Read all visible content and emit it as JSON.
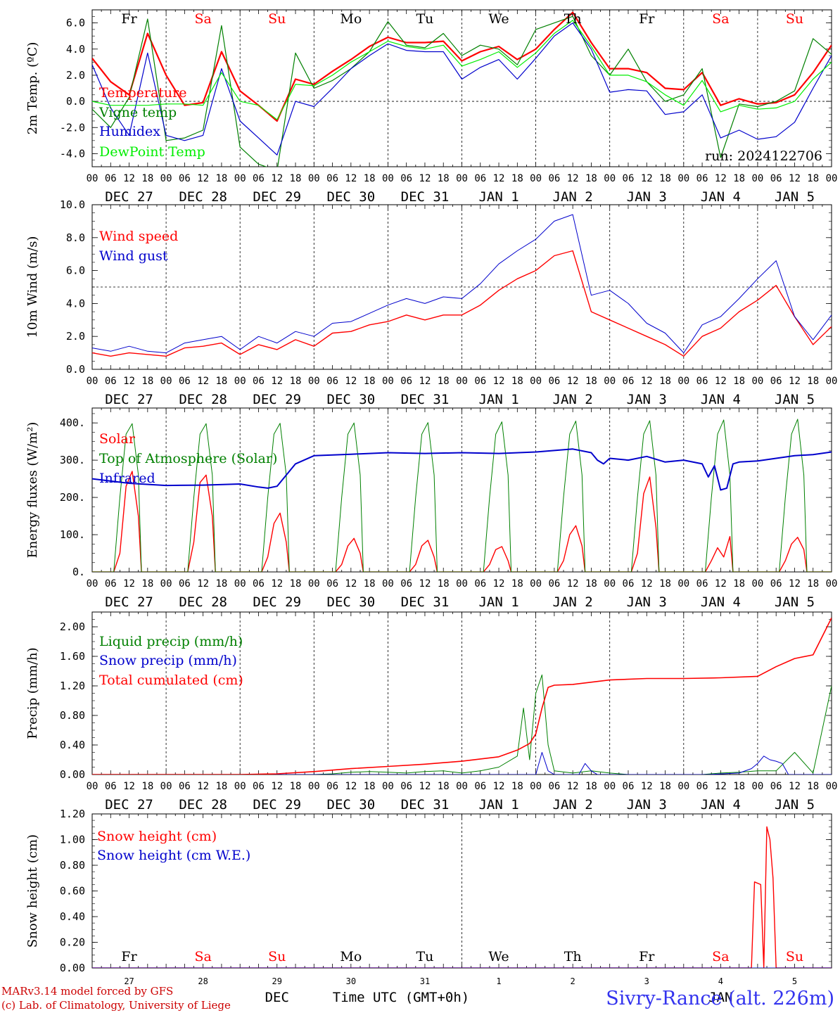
{
  "chart_data": [
    {
      "type": "line",
      "ylabel": "2m Temp. (ºC)",
      "ylim": [
        -5,
        7
      ],
      "yticks": [
        "6.0",
        "4.0",
        "2.0",
        "0.0",
        "-2.0",
        "-4.0"
      ],
      "ytick_values": [
        6,
        4,
        2,
        0,
        -2,
        -4
      ],
      "dashed_y": 0,
      "days": [
        "Fr",
        "Sa",
        "Su",
        "Mo",
        "Tu",
        "We",
        "Th",
        "Fr",
        "Sa",
        "Su"
      ],
      "run_label": "run: 2024122706",
      "x_hours": [
        0,
        6,
        12,
        18,
        24,
        30,
        36,
        42,
        48,
        54,
        60,
        66,
        72,
        78,
        84,
        90,
        96,
        102,
        108,
        114,
        120,
        126,
        132,
        138,
        144,
        150,
        156,
        162,
        168,
        174,
        180,
        186,
        192,
        198,
        204,
        210,
        216,
        222,
        228,
        234,
        240
      ],
      "series": [
        {
          "name": "Temperature",
          "color": "#ff0000",
          "width": 2.2,
          "values": [
            3.3,
            1.5,
            0.5,
            5.2,
            2.0,
            -0.3,
            -0.1,
            3.8,
            0.8,
            -0.3,
            -1.5,
            1.7,
            1.3,
            2.3,
            3.2,
            4.2,
            4.9,
            4.5,
            4.5,
            4.6,
            3.1,
            3.8,
            4.2,
            3.2,
            4.0,
            5.5,
            6.8,
            4.5,
            2.5,
            2.5,
            2.2,
            1.0,
            0.9,
            2.2,
            -0.3,
            0.2,
            -0.2,
            -0.1,
            0.5,
            2.2,
            4.3
          ]
        },
        {
          "name": "Vigne temp",
          "color": "#008000",
          "width": 1.2,
          "values": [
            -0.6,
            -2.0,
            0.3,
            6.3,
            -3.0,
            -2.8,
            -2.2,
            5.8,
            -3.5,
            -4.8,
            -5.3,
            3.7,
            1.0,
            1.6,
            2.5,
            3.8,
            6.1,
            4.3,
            4.1,
            5.2,
            3.5,
            4.3,
            4.0,
            2.8,
            5.5,
            6.0,
            6.5,
            3.5,
            2.0,
            4.0,
            1.5,
            0.0,
            0.5,
            2.5,
            -4.3,
            -0.2,
            -0.4,
            0.0,
            0.8,
            4.8,
            3.6
          ]
        },
        {
          "name": "Humidex",
          "color": "#0000cc",
          "width": 1.2,
          "values": [
            2.8,
            -0.5,
            -2.6,
            3.7,
            -2.6,
            -3.0,
            -2.6,
            2.5,
            -1.5,
            -2.8,
            -4.1,
            0.0,
            -0.4,
            1.0,
            2.5,
            3.5,
            4.4,
            3.9,
            3.8,
            3.8,
            1.7,
            2.6,
            3.2,
            1.7,
            3.3,
            5.0,
            6.0,
            4.0,
            0.7,
            0.9,
            0.8,
            -1.0,
            -0.8,
            0.5,
            -2.8,
            -2.2,
            -2.9,
            -2.7,
            -1.6,
            1.0,
            3.5
          ]
        },
        {
          "name": "DewPoint Temp",
          "color": "#00ee00",
          "width": 1.2,
          "values": [
            0.0,
            -0.3,
            -0.3,
            -0.3,
            -0.2,
            -0.2,
            -0.3,
            2.2,
            0.0,
            -0.3,
            -1.4,
            1.3,
            1.2,
            2.0,
            3.0,
            3.8,
            4.6,
            4.2,
            4.0,
            4.3,
            2.7,
            3.2,
            3.8,
            2.6,
            3.7,
            5.2,
            6.2,
            4.2,
            2.0,
            2.0,
            1.5,
            0.5,
            -0.3,
            1.6,
            -0.8,
            -0.3,
            -0.6,
            -0.5,
            0.0,
            1.7,
            3.0
          ]
        }
      ]
    },
    {
      "type": "line",
      "ylabel": "10m Wind (m/s)",
      "ylim": [
        0,
        10
      ],
      "yticks": [
        "10.0",
        "8.0",
        "6.0",
        "4.0",
        "2.0",
        "0.0"
      ],
      "ytick_values": [
        10,
        8,
        6,
        4,
        2,
        0
      ],
      "dashed_y": 5,
      "x_hours": [
        0,
        6,
        12,
        18,
        24,
        30,
        36,
        42,
        48,
        54,
        60,
        66,
        72,
        78,
        84,
        90,
        96,
        102,
        108,
        114,
        120,
        126,
        132,
        138,
        144,
        150,
        156,
        162,
        168,
        174,
        180,
        186,
        192,
        198,
        204,
        210,
        216,
        222,
        228,
        234,
        240
      ],
      "series": [
        {
          "name": "Wind speed",
          "color": "#ff0000",
          "width": 1.4,
          "values": [
            1.0,
            0.8,
            1.0,
            0.9,
            0.8,
            1.3,
            1.4,
            1.6,
            0.9,
            1.5,
            1.2,
            1.8,
            1.4,
            2.2,
            2.3,
            2.7,
            2.9,
            3.3,
            3.0,
            3.3,
            3.3,
            3.9,
            4.8,
            5.5,
            6.0,
            6.9,
            7.2,
            3.5,
            3.0,
            2.5,
            2.0,
            1.5,
            0.8,
            2.0,
            2.5,
            3.5,
            4.2,
            5.1,
            3.2,
            1.5,
            2.6
          ]
        },
        {
          "name": "Wind gust",
          "color": "#0000cc",
          "width": 1.0,
          "values": [
            1.3,
            1.1,
            1.4,
            1.1,
            1.0,
            1.6,
            1.8,
            2.0,
            1.2,
            2.0,
            1.6,
            2.3,
            2.0,
            2.8,
            2.9,
            3.4,
            3.9,
            4.3,
            4.0,
            4.4,
            4.3,
            5.2,
            6.4,
            7.2,
            7.9,
            9.0,
            9.4,
            4.5,
            4.8,
            4.0,
            2.8,
            2.2,
            1.0,
            2.7,
            3.2,
            4.3,
            5.5,
            6.6,
            3.2,
            1.8,
            3.3
          ]
        }
      ]
    },
    {
      "type": "line",
      "ylabel": "Energy fluxes (W/m²)",
      "ylim": [
        0,
        440
      ],
      "yticks": [
        "400.",
        "300.",
        "200.",
        "100.",
        "0."
      ],
      "ytick_values": [
        400,
        300,
        200,
        100,
        0
      ],
      "x_hours": [
        0,
        6,
        7,
        9,
        11,
        13,
        15,
        16,
        18,
        24,
        30,
        31,
        33,
        35,
        37,
        39,
        40,
        42,
        48,
        54,
        55,
        57,
        59,
        61,
        63,
        64,
        66,
        72,
        78,
        79,
        81,
        83,
        85,
        87,
        88,
        90,
        96,
        102,
        103,
        105,
        107,
        109,
        111,
        112,
        114,
        120,
        126,
        127,
        129,
        131,
        133,
        135,
        136,
        138,
        144,
        150,
        151,
        153,
        155,
        157,
        159,
        160,
        162,
        168,
        174,
        175,
        177,
        179,
        181,
        183,
        184,
        186,
        192,
        198,
        199,
        201,
        203,
        205,
        207,
        208,
        210,
        216,
        222,
        223,
        225,
        227,
        229,
        231,
        232,
        234,
        240
      ],
      "series": [
        {
          "name": "Solar",
          "color": "#ff0000",
          "width": 1.4,
          "values": [
            0,
            0,
            0,
            50,
            230,
            270,
            150,
            0,
            0,
            0,
            0,
            0,
            80,
            240,
            260,
            150,
            0,
            0,
            0,
            0,
            0,
            40,
            130,
            158,
            80,
            0,
            0,
            0,
            0,
            0,
            20,
            70,
            90,
            50,
            0,
            0,
            0,
            0,
            0,
            20,
            70,
            85,
            40,
            0,
            0,
            0,
            0,
            0,
            20,
            60,
            68,
            30,
            0,
            0,
            0,
            0,
            0,
            30,
            100,
            124,
            70,
            0,
            0,
            0,
            0,
            0,
            50,
            210,
            255,
            120,
            0,
            0,
            0,
            0,
            0,
            30,
            65,
            40,
            95,
            0,
            0,
            0,
            0,
            0,
            30,
            75,
            93,
            60,
            0,
            0,
            0
          ]
        },
        {
          "name": "Top of Atmosphere (Solar)",
          "color": "#008000",
          "width": 1.0,
          "values": [
            0,
            0,
            0,
            200,
            370,
            398,
            260,
            0,
            0,
            0,
            0,
            0,
            200,
            370,
            398,
            260,
            0,
            0,
            0,
            0,
            0,
            200,
            370,
            399,
            260,
            0,
            0,
            0,
            0,
            0,
            200,
            370,
            400,
            260,
            0,
            0,
            0,
            0,
            0,
            200,
            370,
            401,
            260,
            0,
            0,
            0,
            0,
            0,
            200,
            370,
            403,
            260,
            0,
            0,
            0,
            0,
            0,
            200,
            370,
            405,
            260,
            0,
            0,
            0,
            0,
            0,
            200,
            370,
            406,
            260,
            0,
            0,
            0,
            0,
            0,
            200,
            370,
            408,
            260,
            0,
            0,
            0,
            0,
            0,
            200,
            370,
            410,
            260,
            0,
            0,
            0
          ]
        },
        {
          "name": "Infrared",
          "color": "#0000cc",
          "width": 2.0,
          "x_hours": [
            0,
            12,
            24,
            36,
            48,
            54,
            57,
            60,
            66,
            72,
            84,
            96,
            108,
            120,
            132,
            144,
            150,
            156,
            162,
            164,
            166,
            168,
            174,
            180,
            186,
            192,
            198,
            200,
            202,
            204,
            206,
            208,
            210,
            216,
            222,
            228,
            234,
            240
          ],
          "values": [
            250,
            238,
            232,
            233,
            236,
            228,
            225,
            230,
            290,
            312,
            316,
            320,
            318,
            320,
            318,
            322,
            326,
            330,
            320,
            300,
            290,
            305,
            300,
            310,
            295,
            300,
            290,
            255,
            285,
            220,
            225,
            290,
            295,
            298,
            305,
            312,
            315,
            322
          ]
        }
      ]
    },
    {
      "type": "line",
      "ylabel": "Precip (mm/h)",
      "ylim": [
        0,
        2.2
      ],
      "yticks": [
        "2.00",
        "1.60",
        "1.20",
        "0.80",
        "0.40",
        "0.00"
      ],
      "ytick_values": [
        2.0,
        1.6,
        1.2,
        0.8,
        0.4,
        0.0
      ],
      "x_hours": [
        0,
        6,
        12,
        18,
        24,
        30,
        36,
        42,
        48,
        54,
        60,
        66,
        72,
        78,
        84,
        90,
        96,
        102,
        108,
        114,
        120,
        126,
        132,
        138,
        140,
        142,
        144,
        146,
        148,
        150,
        156,
        162,
        168,
        174,
        180,
        186,
        192,
        198,
        204,
        210,
        216,
        222,
        228,
        234,
        240
      ],
      "series": [
        {
          "name": "Liquid precip (mm/h)",
          "color": "#008000",
          "width": 1.0,
          "values": [
            0,
            0,
            0,
            0,
            0,
            0,
            0,
            0,
            0,
            0,
            0,
            0,
            0,
            0.01,
            0.03,
            0.04,
            0.03,
            0.02,
            0.04,
            0.05,
            0.02,
            0.05,
            0.1,
            0.25,
            0.9,
            0.2,
            1.1,
            1.35,
            0.4,
            0.05,
            0.02,
            0.05,
            0.02,
            0,
            0,
            0,
            0,
            0,
            0.02,
            0.03,
            0.05,
            0.05,
            0.3,
            0.02,
            1.2
          ]
        },
        {
          "name": "Snow precip (mm/h)",
          "color": "#0000cc",
          "width": 1.0,
          "x_hours": [
            0,
            140,
            144,
            146,
            148,
            150,
            158,
            160,
            162,
            164,
            190,
            200,
            210,
            214,
            216,
            218,
            220,
            222,
            224,
            226,
            240
          ],
          "values": [
            0,
            0,
            0,
            0.3,
            0.05,
            0,
            0,
            0.15,
            0.05,
            0,
            0,
            0,
            0.02,
            0.08,
            0.15,
            0.25,
            0.2,
            0.18,
            0.15,
            0,
            0
          ]
        },
        {
          "name": "Total cumulated (cm)",
          "color": "#ff0000",
          "width": 1.6,
          "x_hours": [
            0,
            48,
            60,
            72,
            84,
            96,
            108,
            120,
            132,
            138,
            142,
            144,
            146,
            148,
            150,
            156,
            168,
            180,
            192,
            204,
            216,
            222,
            228,
            234,
            240
          ],
          "values": [
            0,
            0,
            0.01,
            0.04,
            0.08,
            0.11,
            0.14,
            0.18,
            0.24,
            0.33,
            0.42,
            0.55,
            0.9,
            1.18,
            1.21,
            1.22,
            1.28,
            1.3,
            1.3,
            1.31,
            1.33,
            1.46,
            1.57,
            1.62,
            2.12
          ]
        }
      ]
    },
    {
      "type": "line",
      "ylabel": "Snow height (cm)",
      "ylim": [
        0,
        1.2
      ],
      "yticks": [
        "1.20",
        "1.00",
        "0.80",
        "0.60",
        "0.40",
        "0.20",
        "0.00"
      ],
      "ytick_values": [
        1.2,
        1.0,
        0.8,
        0.6,
        0.4,
        0.2,
        0.0
      ],
      "days": [
        "Fr",
        "Sa",
        "Su",
        "Mo",
        "Tu",
        "We",
        "Th",
        "Fr",
        "Sa",
        "Su"
      ],
      "day_numbers": [
        "27",
        "28",
        "29",
        "30",
        "31",
        "1",
        "2",
        "3",
        "4",
        "5"
      ],
      "month_dec": "DEC",
      "month_jan": "JAN",
      "xlabel": "Time UTC (GMT+0h)",
      "series": [
        {
          "name": "Snow height (cm)",
          "color": "#ff0000",
          "width": 1.4,
          "x_hours": [
            0,
            214,
            215,
            217,
            218,
            219,
            220,
            221,
            222,
            240
          ],
          "values": [
            0,
            0,
            0.67,
            0.65,
            0,
            1.1,
            1.0,
            0.7,
            0,
            0
          ]
        },
        {
          "name": "Snow height (cm W.E.)",
          "color": "#0000cc",
          "width": 1.0,
          "x_hours": [
            0,
            240
          ],
          "values": [
            0,
            0
          ]
        }
      ]
    }
  ],
  "date_labels": [
    "DEC 27",
    "DEC 28",
    "DEC 29",
    "DEC 30",
    "DEC 31",
    "JAN  1",
    "JAN  2",
    "JAN  3",
    "JAN  4",
    "JAN  5"
  ],
  "hour_ticks": [
    "00",
    "06",
    "12",
    "18"
  ],
  "day_colors": {
    "weekday": "#000000",
    "weekend": "#ff0000"
  },
  "footer": {
    "model": "MARv3.14 model forced by GFS",
    "lab": "(c) Lab. of Climatology, University of Liege",
    "site": "Sivry-Rance (alt. 226m)",
    "footer_color": "#cc0000",
    "site_color": "#3333ee"
  }
}
